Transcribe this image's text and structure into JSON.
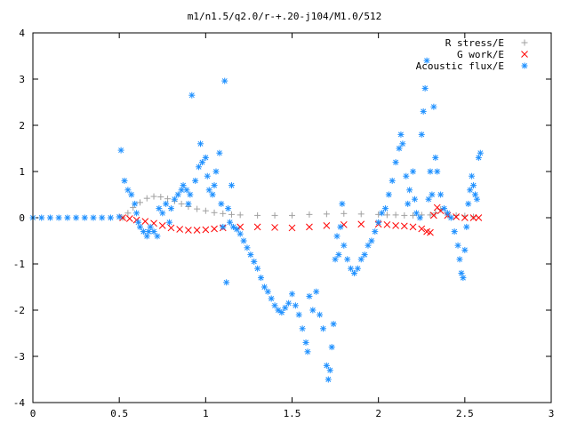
{
  "chart_data": {
    "type": "scatter",
    "title": "m1/n1.5/q2.0/r-+.20-j104/M1.0/512",
    "xlabel": "",
    "ylabel": "",
    "xlim": [
      0,
      3
    ],
    "ylim": [
      -4,
      4
    ],
    "x_ticks": [
      0,
      0.5,
      1,
      1.5,
      2,
      2.5,
      3
    ],
    "x_tick_labels": [
      "0",
      "0.5",
      "1",
      "1.5",
      "2",
      "2.5",
      "3"
    ],
    "y_ticks": [
      -4,
      -3,
      -2,
      -1,
      0,
      1,
      2,
      3,
      4
    ],
    "y_tick_labels": [
      "-4",
      "-3",
      "-2",
      "-1",
      "0",
      "1",
      "2",
      "3",
      "4"
    ],
    "grid": false,
    "legend_position": "top-right",
    "series": [
      {
        "name": "R stress/E",
        "marker": "plus",
        "color": "#a0a0a0",
        "points": [
          [
            0.52,
            0.0
          ],
          [
            0.55,
            0.1
          ],
          [
            0.58,
            0.22
          ],
          [
            0.62,
            0.33
          ],
          [
            0.66,
            0.42
          ],
          [
            0.7,
            0.46
          ],
          [
            0.74,
            0.45
          ],
          [
            0.78,
            0.41
          ],
          [
            0.82,
            0.36
          ],
          [
            0.86,
            0.3
          ],
          [
            0.9,
            0.24
          ],
          [
            0.95,
            0.19
          ],
          [
            1.0,
            0.15
          ],
          [
            1.05,
            0.11
          ],
          [
            1.1,
            0.09
          ],
          [
            1.15,
            0.07
          ],
          [
            1.2,
            0.06
          ],
          [
            1.3,
            0.05
          ],
          [
            1.4,
            0.05
          ],
          [
            1.5,
            0.05
          ],
          [
            1.6,
            0.07
          ],
          [
            1.7,
            0.08
          ],
          [
            1.8,
            0.09
          ],
          [
            1.9,
            0.08
          ],
          [
            2.0,
            0.07
          ],
          [
            2.05,
            0.06
          ],
          [
            2.1,
            0.06
          ],
          [
            2.15,
            0.05
          ],
          [
            2.2,
            0.05
          ],
          [
            2.25,
            0.06
          ],
          [
            2.3,
            0.06
          ],
          [
            2.33,
            0.1
          ],
          [
            2.36,
            0.18
          ],
          [
            2.4,
            0.06
          ],
          [
            2.45,
            0.05
          ],
          [
            2.5,
            0.04
          ],
          [
            2.55,
            0.02
          ]
        ]
      },
      {
        "name": "G work/E",
        "marker": "cross",
        "color": "#ff0000",
        "points": [
          [
            0.52,
            0.0
          ],
          [
            0.56,
            -0.02
          ],
          [
            0.6,
            -0.05
          ],
          [
            0.65,
            -0.08
          ],
          [
            0.7,
            -0.12
          ],
          [
            0.75,
            -0.17
          ],
          [
            0.8,
            -0.22
          ],
          [
            0.85,
            -0.25
          ],
          [
            0.9,
            -0.27
          ],
          [
            0.95,
            -0.27
          ],
          [
            1.0,
            -0.26
          ],
          [
            1.05,
            -0.24
          ],
          [
            1.1,
            -0.22
          ],
          [
            1.2,
            -0.2
          ],
          [
            1.3,
            -0.2
          ],
          [
            1.4,
            -0.21
          ],
          [
            1.5,
            -0.22
          ],
          [
            1.6,
            -0.2
          ],
          [
            1.7,
            -0.17
          ],
          [
            1.8,
            -0.15
          ],
          [
            1.9,
            -0.14
          ],
          [
            2.0,
            -0.14
          ],
          [
            2.05,
            -0.15
          ],
          [
            2.1,
            -0.17
          ],
          [
            2.15,
            -0.18
          ],
          [
            2.2,
            -0.2
          ],
          [
            2.25,
            -0.24
          ],
          [
            2.28,
            -0.3
          ],
          [
            2.3,
            -0.32
          ],
          [
            2.32,
            0.05
          ],
          [
            2.34,
            0.22
          ],
          [
            2.36,
            0.15
          ],
          [
            2.4,
            0.05
          ],
          [
            2.45,
            0.02
          ],
          [
            2.5,
            0.0
          ],
          [
            2.55,
            0.0
          ],
          [
            2.58,
            0.0
          ]
        ]
      },
      {
        "name": "Acoustic flux/E",
        "marker": "star",
        "color": "#1e90ff",
        "points": [
          [
            0.0,
            0.0
          ],
          [
            0.05,
            0.0
          ],
          [
            0.1,
            0.0
          ],
          [
            0.15,
            0.0
          ],
          [
            0.2,
            0.0
          ],
          [
            0.25,
            0.0
          ],
          [
            0.3,
            0.0
          ],
          [
            0.35,
            0.0
          ],
          [
            0.4,
            0.0
          ],
          [
            0.45,
            0.0
          ],
          [
            0.5,
            0.02
          ],
          [
            0.51,
            1.46
          ],
          [
            0.53,
            0.8
          ],
          [
            0.55,
            0.6
          ],
          [
            0.57,
            0.5
          ],
          [
            0.59,
            0.3
          ],
          [
            0.6,
            0.1
          ],
          [
            0.61,
            -0.1
          ],
          [
            0.62,
            -0.2
          ],
          [
            0.64,
            -0.3
          ],
          [
            0.66,
            -0.4
          ],
          [
            0.67,
            -0.3
          ],
          [
            0.68,
            -0.2
          ],
          [
            0.7,
            -0.3
          ],
          [
            0.72,
            -0.4
          ],
          [
            0.73,
            0.2
          ],
          [
            0.75,
            0.1
          ],
          [
            0.77,
            0.3
          ],
          [
            0.79,
            -0.1
          ],
          [
            0.8,
            0.2
          ],
          [
            0.82,
            0.4
          ],
          [
            0.84,
            0.5
          ],
          [
            0.86,
            0.6
          ],
          [
            0.87,
            0.7
          ],
          [
            0.89,
            0.6
          ],
          [
            0.9,
            0.3
          ],
          [
            0.91,
            0.5
          ],
          [
            0.92,
            2.65
          ],
          [
            0.94,
            0.8
          ],
          [
            0.96,
            1.1
          ],
          [
            0.97,
            1.6
          ],
          [
            0.98,
            1.2
          ],
          [
            1.0,
            1.3
          ],
          [
            1.01,
            0.9
          ],
          [
            1.02,
            0.6
          ],
          [
            1.04,
            0.5
          ],
          [
            1.05,
            0.7
          ],
          [
            1.06,
            1.0
          ],
          [
            1.08,
            1.4
          ],
          [
            1.09,
            0.3
          ],
          [
            1.1,
            -0.2
          ],
          [
            1.11,
            2.96
          ],
          [
            1.12,
            -1.4
          ],
          [
            1.13,
            0.2
          ],
          [
            1.14,
            -0.1
          ],
          [
            1.15,
            0.7
          ],
          [
            1.16,
            -0.2
          ],
          [
            1.18,
            -0.25
          ],
          [
            1.2,
            -0.35
          ],
          [
            1.22,
            -0.5
          ],
          [
            1.24,
            -0.65
          ],
          [
            1.26,
            -0.8
          ],
          [
            1.28,
            -0.95
          ],
          [
            1.3,
            -1.1
          ],
          [
            1.32,
            -1.3
          ],
          [
            1.34,
            -1.5
          ],
          [
            1.36,
            -1.6
          ],
          [
            1.38,
            -1.75
          ],
          [
            1.4,
            -1.9
          ],
          [
            1.42,
            -2.0
          ],
          [
            1.44,
            -2.05
          ],
          [
            1.46,
            -1.95
          ],
          [
            1.48,
            -1.85
          ],
          [
            1.5,
            -1.65
          ],
          [
            1.52,
            -1.9
          ],
          [
            1.54,
            -2.1
          ],
          [
            1.56,
            -2.4
          ],
          [
            1.58,
            -2.7
          ],
          [
            1.59,
            -2.9
          ],
          [
            1.6,
            -1.7
          ],
          [
            1.62,
            -2.0
          ],
          [
            1.64,
            -1.6
          ],
          [
            1.66,
            -2.1
          ],
          [
            1.68,
            -2.4
          ],
          [
            1.7,
            -3.2
          ],
          [
            1.71,
            -3.5
          ],
          [
            1.72,
            -3.3
          ],
          [
            1.73,
            -2.8
          ],
          [
            1.74,
            -2.3
          ],
          [
            1.75,
            -0.9
          ],
          [
            1.76,
            -0.4
          ],
          [
            1.77,
            -0.8
          ],
          [
            1.78,
            -0.2
          ],
          [
            1.79,
            0.3
          ],
          [
            1.8,
            -0.6
          ],
          [
            1.82,
            -0.9
          ],
          [
            1.84,
            -1.1
          ],
          [
            1.86,
            -1.2
          ],
          [
            1.88,
            -1.1
          ],
          [
            1.9,
            -0.9
          ],
          [
            1.92,
            -0.8
          ],
          [
            1.94,
            -0.6
          ],
          [
            1.96,
            -0.5
          ],
          [
            1.98,
            -0.3
          ],
          [
            2.0,
            -0.1
          ],
          [
            2.02,
            0.1
          ],
          [
            2.04,
            0.2
          ],
          [
            2.06,
            0.5
          ],
          [
            2.08,
            0.8
          ],
          [
            2.1,
            1.2
          ],
          [
            2.12,
            1.5
          ],
          [
            2.13,
            1.8
          ],
          [
            2.14,
            1.6
          ],
          [
            2.16,
            0.9
          ],
          [
            2.17,
            0.3
          ],
          [
            2.18,
            0.6
          ],
          [
            2.2,
            1.0
          ],
          [
            2.21,
            0.4
          ],
          [
            2.22,
            0.1
          ],
          [
            2.24,
            0.0
          ],
          [
            2.25,
            1.8
          ],
          [
            2.26,
            2.3
          ],
          [
            2.27,
            2.8
          ],
          [
            2.28,
            3.4
          ],
          [
            2.29,
            0.4
          ],
          [
            2.3,
            1.0
          ],
          [
            2.31,
            0.5
          ],
          [
            2.32,
            2.4
          ],
          [
            2.33,
            1.3
          ],
          [
            2.34,
            1.0
          ],
          [
            2.36,
            0.5
          ],
          [
            2.38,
            0.2
          ],
          [
            2.4,
            0.1
          ],
          [
            2.42,
            0.0
          ],
          [
            2.44,
            -0.3
          ],
          [
            2.46,
            -0.6
          ],
          [
            2.47,
            -0.9
          ],
          [
            2.48,
            -1.2
          ],
          [
            2.49,
            -1.3
          ],
          [
            2.5,
            -0.7
          ],
          [
            2.51,
            -0.2
          ],
          [
            2.52,
            0.3
          ],
          [
            2.53,
            0.6
          ],
          [
            2.54,
            0.9
          ],
          [
            2.55,
            0.7
          ],
          [
            2.56,
            0.5
          ],
          [
            2.57,
            0.4
          ],
          [
            2.58,
            1.3
          ],
          [
            2.59,
            1.4
          ]
        ]
      }
    ]
  }
}
